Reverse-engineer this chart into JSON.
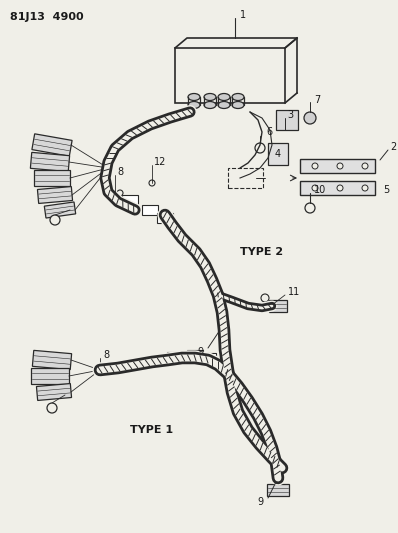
{
  "title": "81J13 4900",
  "bg_color": "#f0efe8",
  "line_color": "#2a2a2a",
  "text_color": "#1a1a1a",
  "fig_w": 3.98,
  "fig_h": 5.33,
  "dpi": 100
}
